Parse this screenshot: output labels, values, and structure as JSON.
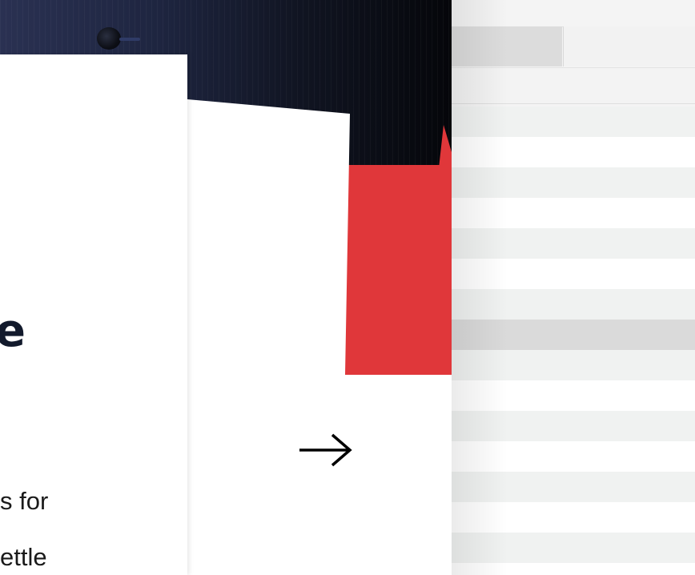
{
  "article": {
    "headline_fragment": "e",
    "body_line_1": "s for",
    "body_line_2": "ettle"
  },
  "colors": {
    "accent_red": "#e0373a",
    "headline": "#121a2c",
    "suit_navy": "#1e2540"
  },
  "icons": {
    "arrow": "arrow-right-icon"
  },
  "table": {
    "rows": [
      "alt",
      "plain",
      "alt",
      "plain",
      "alt",
      "plain",
      "alt",
      "selected",
      "alt",
      "plain",
      "alt",
      "plain",
      "alt",
      "plain",
      "alt",
      "plain"
    ]
  }
}
